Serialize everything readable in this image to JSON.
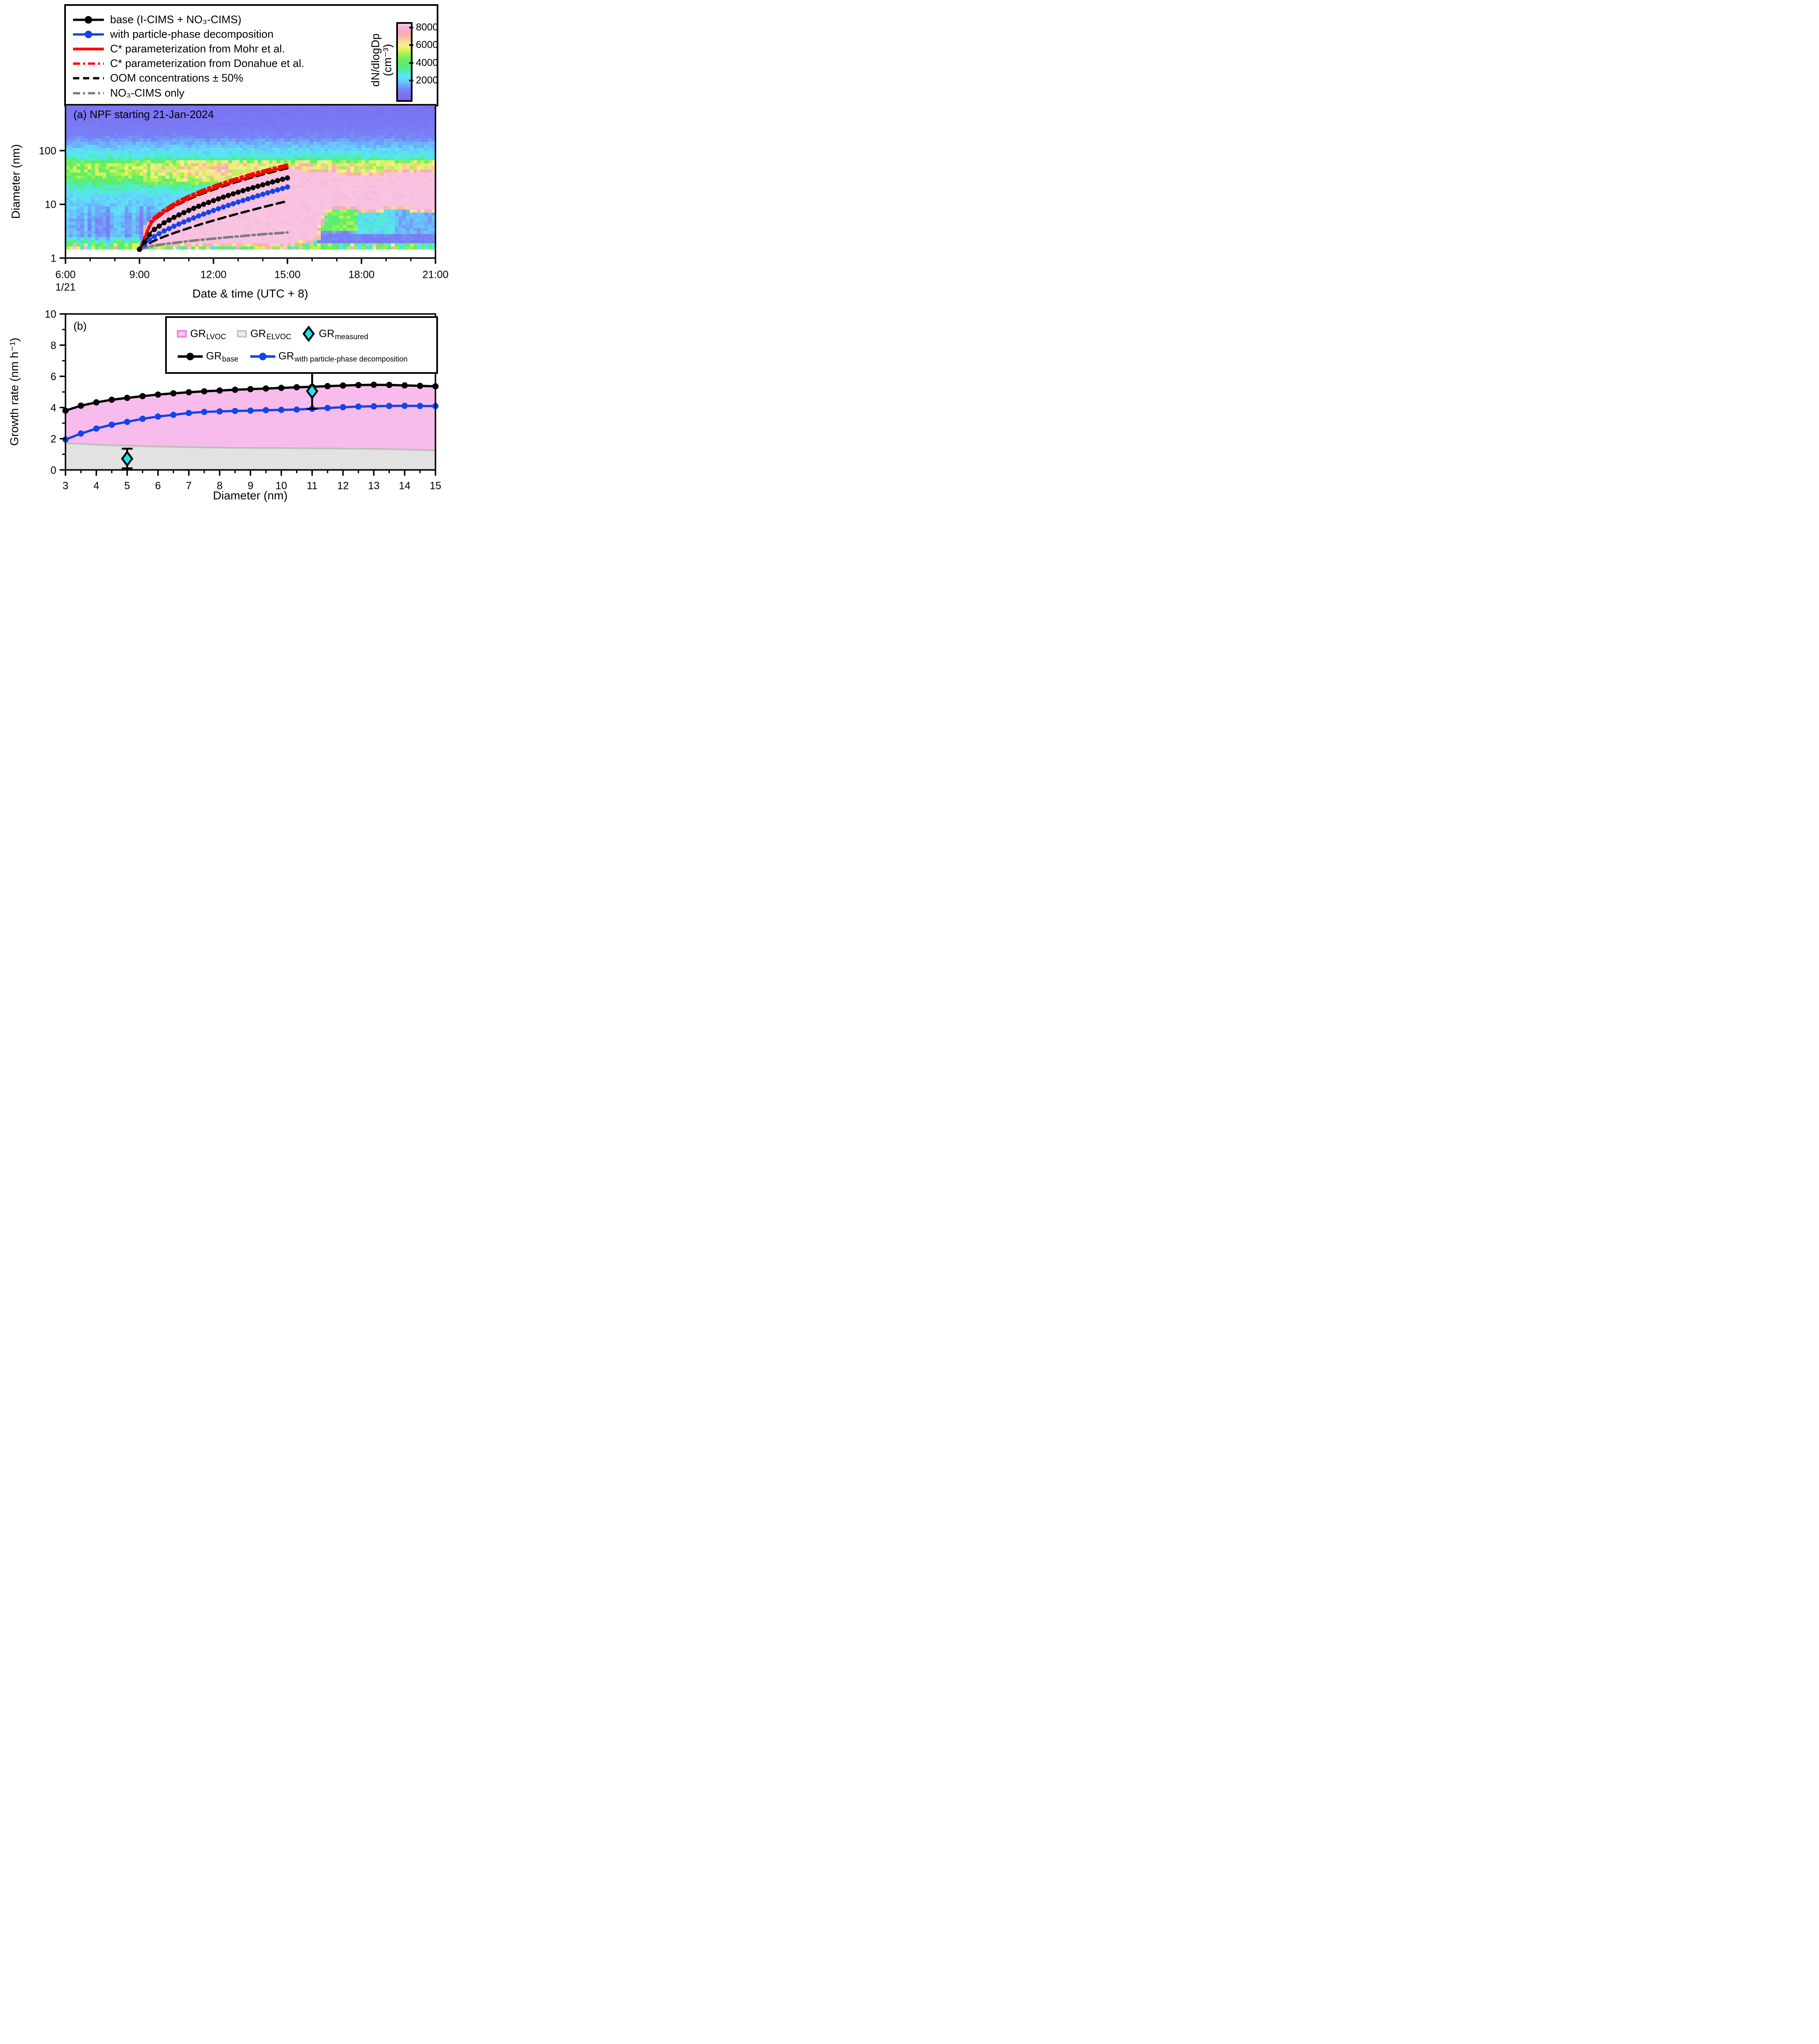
{
  "legend_top": {
    "items": [
      {
        "label": "base (I-CIMS + NO₃-CIMS)",
        "color": "#000000",
        "style": "solid-marker"
      },
      {
        "label": "with particle-phase decomposition",
        "color": "#1544e9",
        "style": "solid-marker"
      },
      {
        "label": "C* parameterization from Mohr et al.",
        "color": "#ff0000",
        "style": "solid"
      },
      {
        "label": "C* parameterization from Donahue et al.",
        "color": "#ff0000",
        "style": "dash-dot"
      },
      {
        "label": "OOM concentrations ± 50%",
        "color": "#000000",
        "style": "dashed"
      },
      {
        "label": "NO₃-CIMS only",
        "color": "#7d7d7d",
        "style": "dash-dot"
      }
    ]
  },
  "colorbar": {
    "label_line1": "dN/dlogDp",
    "label_line2": "(cm⁻³)",
    "ticks": [
      2000,
      4000,
      6000,
      8000
    ],
    "vmax": 8600,
    "stops": [
      [
        0,
        124,
        100,
        238
      ],
      [
        1200,
        120,
        130,
        246
      ],
      [
        2000,
        104,
        196,
        252
      ],
      [
        2600,
        92,
        228,
        248
      ],
      [
        3200,
        76,
        238,
        196
      ],
      [
        3800,
        84,
        236,
        120
      ],
      [
        4600,
        108,
        238,
        92
      ],
      [
        5200,
        168,
        242,
        84
      ],
      [
        5800,
        232,
        244,
        96
      ],
      [
        6200,
        246,
        238,
        152
      ],
      [
        6700,
        250,
        212,
        154
      ],
      [
        7200,
        250,
        182,
        158
      ],
      [
        7800,
        248,
        170,
        204
      ],
      [
        8600,
        248,
        196,
        226
      ]
    ]
  },
  "panel_a": {
    "title": "(a) NPF starting 21-Jan-2024",
    "xlabel": "Date & time (UTC + 8)",
    "ylabel": "Diameter (nm)",
    "xticks": [
      {
        "t": 6,
        "label": "6:00",
        "date": "1/21"
      },
      {
        "t": 9,
        "label": "9:00"
      },
      {
        "t": 12,
        "label": "12:00"
      },
      {
        "t": 15,
        "label": "15:00"
      },
      {
        "t": 18,
        "label": "18:00"
      },
      {
        "t": 21,
        "label": "21:00"
      }
    ],
    "yticks": [
      {
        "d": 1,
        "label": "1"
      },
      {
        "d": 10,
        "label": "10"
      },
      {
        "d": 100,
        "label": "100"
      }
    ]
  },
  "panel_b": {
    "title": "(b)",
    "xlabel": "Diameter (nm)",
    "ylabel": "Growth rate (nm h⁻¹)",
    "xticks": [
      "3",
      "4",
      "5",
      "6",
      "7",
      "8",
      "9",
      "10",
      "11",
      "12",
      "13",
      "14",
      "15"
    ],
    "yticks": [
      "0",
      "2",
      "4",
      "6",
      "8",
      "10"
    ],
    "legend": {
      "items": [
        {
          "main": "GR",
          "sub": "LVOC",
          "swatch": "pink"
        },
        {
          "main": "GR",
          "sub": "ELVOC",
          "swatch": "gray"
        },
        {
          "main": "GR",
          "sub": "measured",
          "swatch": "diamond"
        },
        {
          "main": "GR",
          "sub": "base",
          "swatch": "black-line"
        },
        {
          "main": "GR",
          "sub": "with particle-phase decomposition",
          "swatch": "blue-line"
        }
      ]
    },
    "colors": {
      "pink_fill": "#f8bcec",
      "gray_fill": "#e2e2e2",
      "gray_edge": "#bdbdbd",
      "blue": "#1544e9",
      "black": "#000000",
      "diamond_fill": "#18e8f2"
    }
  },
  "chart_data": [
    {
      "type": "heatmap",
      "panel": "a",
      "title": "(a) NPF starting 21-Jan-2024",
      "x_axis": {
        "label": "Date & time (UTC + 8)",
        "range_hours": [
          6,
          21
        ],
        "tick_labels": [
          "6:00",
          "9:00",
          "12:00",
          "15:00",
          "18:00",
          "21:00"
        ],
        "date_label": "1/21"
      },
      "y_axis": {
        "label": "Diameter (nm)",
        "scale": "log",
        "range_nm": [
          1,
          714
        ],
        "tick_labels": [
          "1",
          "10",
          "100"
        ]
      },
      "colorbar": {
        "label": "dN/dlogDp (cm⁻³)",
        "range": [
          0,
          8600
        ],
        "ticks": [
          2000,
          4000,
          6000,
          8000
        ]
      },
      "heatmap": {
        "grid": {
          "cols": 100,
          "rows": 47,
          "logd_min": 0.1614,
          "logd_max": 2.854,
          "t_min": 6,
          "t_max": 21
        },
        "background_bands": [
          [
            0.161,
            4100
          ],
          [
            0.28,
            3300
          ],
          [
            0.41,
            1500
          ],
          [
            0.7,
            1350
          ],
          [
            0.95,
            2000
          ],
          [
            1.15,
            2500
          ],
          [
            1.35,
            3300
          ],
          [
            1.54,
            4700
          ],
          [
            1.74,
            4800
          ],
          [
            1.88,
            3000
          ],
          [
            2.04,
            2200
          ],
          [
            2.26,
            1200
          ],
          [
            2.48,
            800
          ],
          [
            2.854,
            650
          ]
        ],
        "midday_boost": {
          "center": 12.3,
          "sigma": 2.2,
          "amp": 0.38,
          "ld_range": [
            1.35,
            1.85
          ]
        },
        "late_boost": {
          "t_range": [
            15.3,
            21
          ],
          "ld_range": [
            1.56,
            1.82
          ],
          "amp": 0.25
        },
        "stripes": {
          "ld_max": 0.98,
          "min": 0.72,
          "span": 0.75
        },
        "bottom_speckle": {
          "ld_max": 0.28,
          "min": 0.75,
          "span": 0.8
        },
        "cell_noise": {
          "min": 0.82,
          "span": 0.36
        },
        "event": {
          "banana": {
            "t_start": 9.35,
            "t_end": 15.25,
            "lower_nm": 1.9,
            "upper_curve": {
              "d0": 1.45,
              "ln_ratio": 3.4,
              "p": 0.44
            },
            "value": 8600
          },
          "blob": {
            "t_range": [
              15.25,
              21
            ],
            "upper_nm": 37,
            "upper_start_nm": 45,
            "upper_blend_until": 16.0,
            "lower_nm": 2.05,
            "lower_rise": {
              "t_from": 16.1,
              "t_to": 16.6,
              "to_nm": 8.6
            },
            "value": 8600
          },
          "fringe_value": 6900
        },
        "post_patches": [
          {
            "t": [
              16.15,
              17.9
            ],
            "d": [
              3.2,
              8.8
            ],
            "value": 4300
          },
          {
            "t": [
              17.9,
              19.3
            ],
            "d": [
              2.7,
              9.5
            ],
            "value": 2600
          },
          {
            "t": [
              19.3,
              21
            ],
            "d": [
              2.7,
              9.5
            ],
            "value": 1800
          },
          {
            "t": [
              16.15,
              21
            ],
            "d": [
              1.9,
              2.7
            ],
            "value": 1100
          }
        ]
      },
      "growth_curves": {
        "t_hours": [
          9,
          9.5,
          10,
          10.5,
          11,
          11.5,
          12,
          12.5,
          13,
          13.5,
          14,
          14.5,
          15
        ],
        "series": [
          {
            "name": "oom_plus50",
            "label": "OOM concentrations +50%",
            "color": "#000000",
            "style": "dashed",
            "width": 5.5,
            "d_nm": [
              1.45,
              4.65,
              7.05,
              9.6,
              12.4,
              15.5,
              18.8,
              22.6,
              26.6,
              31.1,
              36.0,
              41.2,
              47.0
            ]
          },
          {
            "name": "donahue",
            "label": "C* parameterization from Donahue et al.",
            "color": "#ff0000",
            "style": "dash-dot",
            "width": 6,
            "d_nm": [
              1.45,
              5.2,
              8.0,
              11.1,
              14.4,
              18.0,
              22.0,
              26.3,
              31.1,
              36.4,
              42.1,
              48.3,
              55.0
            ]
          },
          {
            "name": "mohr",
            "label": "C* parameterization from Mohr et al.",
            "color": "#ff0000",
            "style": "solid",
            "width": 6,
            "d_nm": [
              1.45,
              4.75,
              7.25,
              9.9,
              12.9,
              16.1,
              19.7,
              23.7,
              28.0,
              32.8,
              38.1,
              43.8,
              50.0
            ]
          },
          {
            "name": "oom_minus50",
            "label": "OOM concentrations −50%",
            "color": "#000000",
            "style": "dashed",
            "width": 5.5,
            "d_nm": [
              1.45,
              2.01,
              2.51,
              3.04,
              3.62,
              4.28,
              5.0,
              5.81,
              6.72,
              7.72,
              8.85,
              10.1,
              11.5
            ]
          },
          {
            "name": "no3_cims_only",
            "label": "NO₃-CIMS only",
            "color": "#7d7d7d",
            "style": "dash-dot",
            "width": 6,
            "d_nm": [
              1.45,
              1.67,
              1.82,
              1.94,
              2.07,
              2.19,
              2.3,
              2.42,
              2.53,
              2.65,
              2.77,
              2.88,
              3.0
            ]
          },
          {
            "name": "with_decomposition",
            "label": "with particle-phase decomposition",
            "color": "#1544e9",
            "style": "marker",
            "width": 4,
            "d_nm": [
              1.45,
              2.37,
              3.2,
              4.11,
              5.14,
              6.33,
              7.69,
              9.25,
              11.03,
              13.06,
              15.37,
              18.01,
              21.0
            ]
          },
          {
            "name": "base",
            "label": "base (I-CIMS + NO₃-CIMS)",
            "color": "#000000",
            "style": "marker",
            "width": 4,
            "d_nm": [
              1.45,
              3.17,
              4.54,
              6.05,
              7.72,
              9.62,
              11.74,
              14.13,
              16.82,
              19.8,
              23.1,
              26.9,
              31.0
            ]
          }
        ]
      }
    },
    {
      "type": "line-area",
      "panel": "b",
      "title": "(b)",
      "xlabel": "Diameter (nm)",
      "ylabel": "Growth rate (nm h⁻¹)",
      "xlim": [
        3,
        15
      ],
      "ylim": [
        0,
        10
      ],
      "x_nm": [
        3,
        3.5,
        4,
        4.5,
        5,
        5.5,
        6,
        6.5,
        7,
        7.5,
        8,
        8.5,
        9,
        9.5,
        10,
        10.5,
        11,
        11.5,
        12,
        12.5,
        13,
        13.5,
        14,
        14.5,
        15
      ],
      "series": [
        {
          "name": "GR_base",
          "color": "#000000",
          "style": "marker",
          "values": [
            3.8,
            4.12,
            4.33,
            4.5,
            4.62,
            4.73,
            4.83,
            4.91,
            4.98,
            5.04,
            5.09,
            5.14,
            5.18,
            5.22,
            5.26,
            5.3,
            5.33,
            5.37,
            5.41,
            5.44,
            5.46,
            5.45,
            5.42,
            5.39,
            5.36
          ]
        },
        {
          "name": "GR_with_particle_phase_decomposition",
          "color": "#1544e9",
          "style": "marker",
          "values": [
            1.95,
            2.33,
            2.65,
            2.9,
            3.08,
            3.28,
            3.42,
            3.53,
            3.65,
            3.72,
            3.75,
            3.78,
            3.8,
            3.83,
            3.85,
            3.87,
            3.92,
            3.97,
            4.02,
            4.06,
            4.08,
            4.1,
            4.11,
            4.1,
            4.09
          ]
        },
        {
          "name": "GR_ELVOC_upper_boundary",
          "color": "#bdbdbd",
          "style": "line",
          "values": [
            1.72,
            1.67,
            1.62,
            1.58,
            1.55,
            1.52,
            1.5,
            1.48,
            1.46,
            1.45,
            1.43,
            1.42,
            1.41,
            1.4,
            1.4,
            1.39,
            1.38,
            1.38,
            1.37,
            1.36,
            1.35,
            1.33,
            1.31,
            1.28,
            1.25
          ]
        }
      ],
      "areas": [
        {
          "name": "GR_LVOC",
          "between": [
            "GR_ELVOC_upper_boundary",
            "GR_base"
          ],
          "color": "#f8bcec"
        },
        {
          "name": "GR_ELVOC",
          "between": [
            0,
            "GR_ELVOC_upper_boundary"
          ],
          "color": "#e2e2e2"
        }
      ],
      "measured": [
        {
          "x": 5,
          "y": 0.72,
          "err_minus": 0.62,
          "err_plus": 0.64
        },
        {
          "x": 11,
          "y": 5.05,
          "err_minus": 1.13,
          "err_plus": 1.38
        }
      ]
    }
  ]
}
